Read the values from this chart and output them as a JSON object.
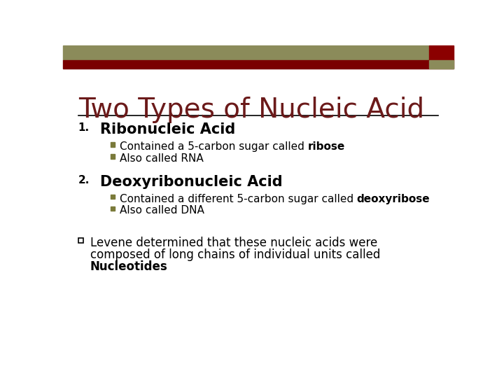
{
  "title": "Two Types of Nucleic Acid",
  "bg_color": "#ffffff",
  "header_bar1_color": "#8b8b5a",
  "header_bar2_color": "#7a0000",
  "header_rect_color": "#8b0000",
  "title_color": "#6b1a1a",
  "title_fontsize": 28,
  "title_font": "Georgia",
  "separator_color": "#000000",
  "text_color": "#000000",
  "number_fontsize": 11,
  "section1_heading": "Ribonucleic Acid",
  "section1_heading_fontsize": 15,
  "section2_heading": "Deoxyribonucleic Acid",
  "section2_heading_fontsize": 15,
  "bullet_color": "#7a7a3a",
  "bullet_fontsize": 11,
  "body_font": "Georgia",
  "note_fontsize": 12,
  "note_marker_color": "#ffffff",
  "note_marker_edge_color": "#000000"
}
